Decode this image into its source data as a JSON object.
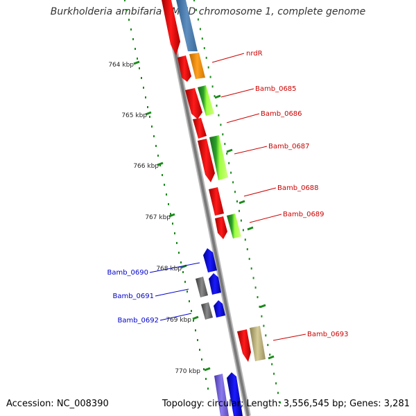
{
  "title": "Burkholderia ambifaria AMMD chromosome 1, complete genome",
  "footer": {
    "accession": "Accession: NC_008390",
    "summary": "Topology: circular; Length: 3,556,545 bp; Genes: 3,281"
  },
  "scale_labels": [
    "764 kbp",
    "765 kbp",
    "766 kbp",
    "767 kbp",
    "768 kbp",
    "769 kbp",
    "770 kbp"
  ],
  "gene_labels": {
    "nrdR": "nrdR",
    "bamb_0685": "Bamb_0685",
    "bamb_0686": "Bamb_0686",
    "bamb_0687": "Bamb_0687",
    "bamb_0688": "Bamb_0688",
    "bamb_0689": "Bamb_0689",
    "bamb_0690": "Bamb_0690",
    "bamb_0691": "Bamb_0691",
    "bamb_0692": "Bamb_0692",
    "bamb_0693": "Bamb_0693"
  },
  "colors": {
    "backbone": "#8a8a8a",
    "scale_dots": "#1a8a1a",
    "cds_red": "#ff0000",
    "rna_blue": "#0000ff",
    "label_red": "#cc0000",
    "label_blue": "#0000cc"
  }
}
